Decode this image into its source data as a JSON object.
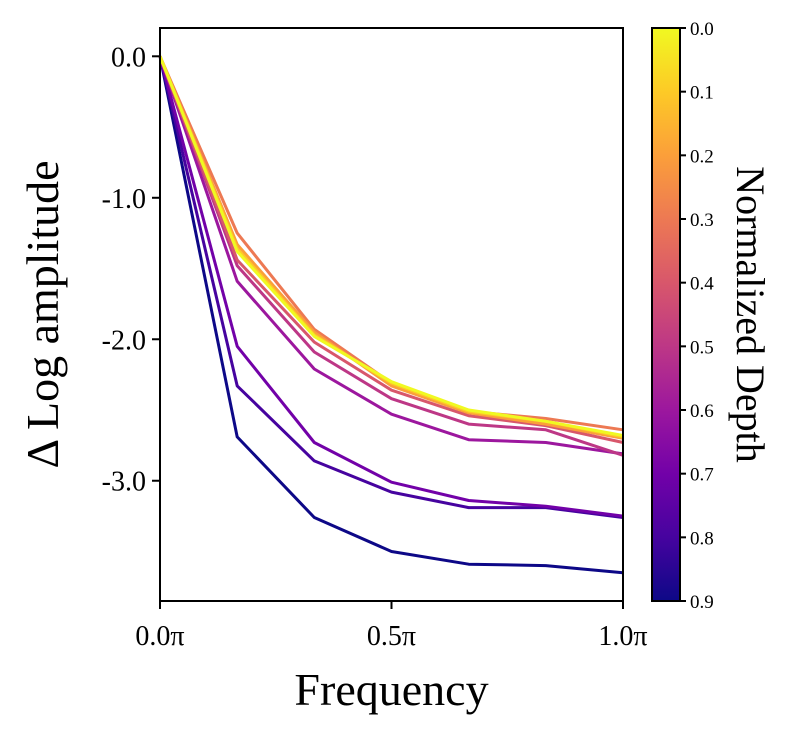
{
  "chart_data": {
    "type": "line",
    "title": "",
    "xlabel": "Frequency",
    "ylabel": "Δ Log amplitude",
    "xlim": [
      0,
      1
    ],
    "ylim": [
      -3.85,
      0.2
    ],
    "xticks": [
      0,
      0.5,
      1
    ],
    "xtick_labels": [
      "0.0π",
      "0.5π",
      "1.0π"
    ],
    "yticks": [
      0,
      -1,
      -2,
      -3
    ],
    "ytick_labels": [
      "0.0",
      "-1.0",
      "-2.0",
      "-3.0"
    ],
    "x": [
      0,
      0.1667,
      0.3333,
      0.5,
      0.6667,
      0.8333,
      1.0
    ],
    "series": [
      {
        "name": "depth 0.0",
        "depth": 0.0,
        "color": "#f0f921",
        "values": [
          0,
          -1.38,
          -1.98,
          -2.3,
          -2.5,
          -2.58,
          -2.68
        ]
      },
      {
        "name": "depth 0.1",
        "depth": 0.1,
        "color": "#fdca26",
        "values": [
          0,
          -1.36,
          -1.97,
          -2.31,
          -2.51,
          -2.58,
          -2.69
        ]
      },
      {
        "name": "depth 0.2",
        "depth": 0.2,
        "color": "#fb9f3a",
        "values": [
          0,
          -1.33,
          -1.95,
          -2.33,
          -2.52,
          -2.6,
          -2.7
        ]
      },
      {
        "name": "depth 0.3",
        "depth": 0.3,
        "color": "#ed7953",
        "values": [
          0,
          -1.25,
          -1.93,
          -2.31,
          -2.51,
          -2.56,
          -2.64
        ]
      },
      {
        "name": "depth 0.4",
        "depth": 0.4,
        "color": "#d8576b",
        "values": [
          0,
          -1.44,
          -2.02,
          -2.36,
          -2.54,
          -2.61,
          -2.73
        ]
      },
      {
        "name": "depth 0.5",
        "depth": 0.5,
        "color": "#bd3786",
        "values": [
          0,
          -1.48,
          -2.09,
          -2.42,
          -2.6,
          -2.64,
          -2.82
        ]
      },
      {
        "name": "depth 0.6",
        "depth": 0.6,
        "color": "#9c179e",
        "values": [
          0,
          -1.59,
          -2.21,
          -2.53,
          -2.71,
          -2.73,
          -2.81
        ]
      },
      {
        "name": "depth 0.7",
        "depth": 0.7,
        "color": "#7201a8",
        "values": [
          0,
          -2.05,
          -2.73,
          -3.01,
          -3.14,
          -3.18,
          -3.25
        ]
      },
      {
        "name": "depth 0.8",
        "depth": 0.8,
        "color": "#46039f",
        "values": [
          0,
          -2.33,
          -2.86,
          -3.08,
          -3.19,
          -3.19,
          -3.26
        ]
      },
      {
        "name": "depth 0.9",
        "depth": 0.9,
        "color": "#0d0887",
        "values": [
          0,
          -2.69,
          -3.26,
          -3.5,
          -3.59,
          -3.6,
          -3.65
        ]
      }
    ],
    "colorbar": {
      "label": "Normalized Depth",
      "range": [
        0.0,
        0.9
      ],
      "ticks": [
        "0.0",
        "0.1",
        "0.2",
        "0.3",
        "0.4",
        "0.5",
        "0.6",
        "0.7",
        "0.8",
        "0.9"
      ],
      "colormap": "plasma",
      "stops": [
        "#0d0887",
        "#46039f",
        "#7201a8",
        "#9c179e",
        "#bd3786",
        "#d8576b",
        "#ed7953",
        "#fb9f3a",
        "#fdca26",
        "#f0f921"
      ]
    }
  }
}
